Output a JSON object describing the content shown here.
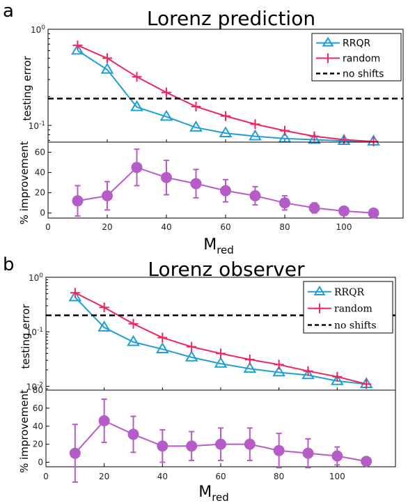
{
  "chart_data": [
    {
      "panel": "a",
      "title": "Lorenz prediction",
      "type": "line",
      "yscale": "log",
      "ylabel": "testing error",
      "ylim": [
        0.067,
        1.0
      ],
      "yticks": [
        {
          "value": 1.0,
          "label": "10^0"
        },
        {
          "value": 0.1,
          "label": "10^-1"
        }
      ],
      "legend_location": "top-right",
      "x": [
        10,
        20,
        30,
        40,
        50,
        60,
        70,
        80,
        90,
        100,
        110
      ],
      "series": [
        {
          "name": "RRQR",
          "color": "#1e9fd8",
          "marker": "triangle",
          "values": [
            0.6,
            0.38,
            0.155,
            0.123,
            0.095,
            0.083,
            0.077,
            0.073,
            0.071,
            0.069,
            0.068
          ]
        },
        {
          "name": "random",
          "color": "#f0255e",
          "marker": "plus",
          "values": [
            0.68,
            0.5,
            0.32,
            0.22,
            0.157,
            0.125,
            0.103,
            0.088,
            0.077,
            0.071,
            0.068
          ]
        },
        {
          "name": "no shifts",
          "color": "#000000",
          "style": "dashed",
          "constant": 0.19
        }
      ],
      "improvement": {
        "ylabel": "% improvement",
        "ylim": [
          -5,
          70
        ],
        "yticks": [
          0,
          20,
          40,
          60
        ],
        "color": "#b55cc9",
        "values": [
          12,
          17,
          45,
          35,
          29,
          22,
          17,
          10,
          5,
          2,
          0
        ],
        "errors": [
          15,
          14,
          18,
          17,
          14,
          11,
          9,
          7,
          5,
          0,
          0
        ]
      },
      "xlabel": "M",
      "xlabel_sub": "red",
      "xlim": [
        0,
        120
      ],
      "xticks": [
        0,
        20,
        40,
        60,
        80,
        100
      ]
    },
    {
      "panel": "b",
      "title": "Lorenz observer",
      "type": "line",
      "yscale": "log",
      "ylabel": "testing error",
      "ylim": [
        0.0085,
        1.0
      ],
      "yticks": [
        {
          "value": 1.0,
          "label": "10^0"
        },
        {
          "value": 0.1,
          "label": "10^-1"
        },
        {
          "value": 0.01,
          "label": "10^-2"
        }
      ],
      "legend_location": "top-right",
      "x": [
        10,
        20,
        30,
        40,
        50,
        60,
        70,
        80,
        90,
        100,
        110
      ],
      "series": [
        {
          "name": "RRQR",
          "color": "#1e9fd8",
          "marker": "triangle",
          "values": [
            0.43,
            0.12,
            0.065,
            0.048,
            0.034,
            0.026,
            0.021,
            0.018,
            0.016,
            0.0125,
            0.011
          ]
        },
        {
          "name": "random",
          "color": "#f0255e",
          "marker": "plus",
          "values": [
            0.52,
            0.28,
            0.14,
            0.078,
            0.053,
            0.04,
            0.031,
            0.025,
            0.019,
            0.015,
            0.011
          ]
        },
        {
          "name": "no shifts",
          "color": "#000000",
          "style": "dashed",
          "constant": 0.2
        }
      ],
      "improvement": {
        "ylabel": "% improvement",
        "ylim": [
          -5,
          80
        ],
        "yticks": [
          0,
          20,
          40,
          60,
          80
        ],
        "color": "#b55cc9",
        "values": [
          10,
          46,
          31,
          18,
          18,
          20,
          20,
          13,
          10,
          7,
          1
        ],
        "errors": [
          32,
          24,
          20,
          18,
          16,
          18,
          18,
          19,
          16,
          10,
          0
        ]
      },
      "xlabel": "M",
      "xlabel_sub": "red",
      "xlim": [
        0,
        120
      ],
      "xticks": [
        0,
        20,
        40,
        60,
        80,
        100
      ]
    }
  ]
}
